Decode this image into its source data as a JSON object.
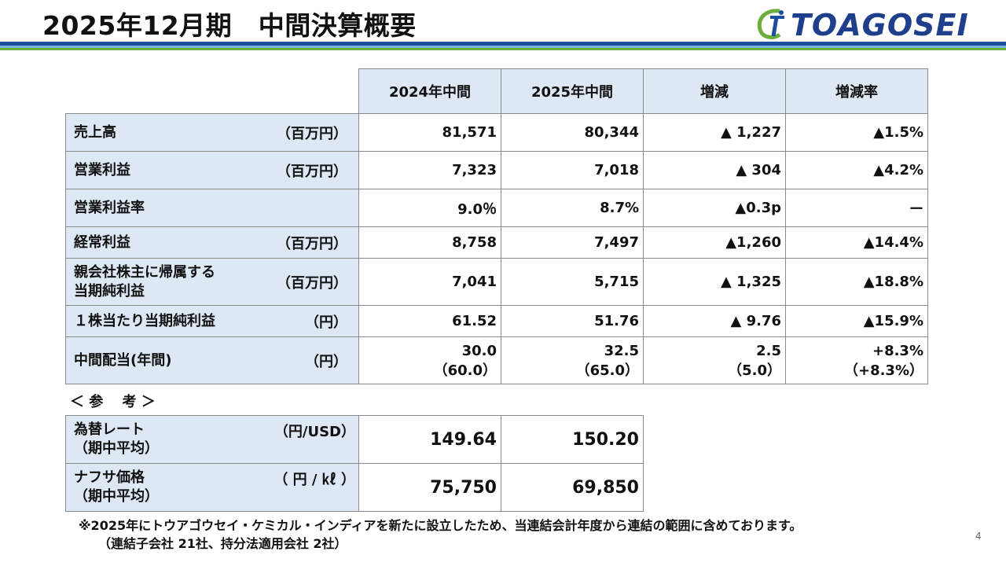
{
  "header": {
    "title": "2025年12月期　中間決算概要",
    "logo_text": "TOAGOSEI"
  },
  "colors": {
    "brand_blue": "#1d4f9f",
    "light_blue": "#78b4dc",
    "green": "#6cae3c",
    "header_fill": "#dde8f4"
  },
  "table": {
    "columns": [
      "2024年中間",
      "2025年中間",
      "増減",
      "増減率"
    ],
    "rows": [
      {
        "label": "売上高",
        "unit": "（百万円）",
        "values": [
          "81,571",
          "80,344",
          "▲ 1,227",
          "▲1.5%"
        ]
      },
      {
        "label": "営業利益",
        "unit": "（百万円）",
        "values": [
          "7,323",
          "7,018",
          "▲ 304",
          "▲4.2%"
        ]
      },
      {
        "label": "営業利益率",
        "unit": "",
        "values": [
          "9.0％",
          "8.7%",
          "▲0.3p",
          "ー"
        ]
      },
      {
        "label": "経常利益",
        "unit": "（百万円）",
        "values": [
          "8,758",
          "7,497",
          "▲1,260",
          "▲14.4%"
        ]
      },
      {
        "label_line1": "親会社株主に帰属する",
        "label_line2": "当期純利益",
        "unit": "（百万円）",
        "values": [
          "7,041",
          "5,715",
          "▲ 1,325",
          "▲18.8%"
        ]
      },
      {
        "label": "１株当たり当期純利益",
        "unit": "（円）",
        "values": [
          "61.52",
          "51.76",
          "▲ 9.76",
          "▲15.9%"
        ]
      },
      {
        "label": "中間配当(年間)",
        "unit": "（円）",
        "values_line1": [
          "30.0",
          "32.5",
          "2.5",
          "+8.3%"
        ],
        "values_line2": [
          "（60.0）",
          "（65.0）",
          "（5.0）",
          "（+8.3%）"
        ]
      }
    ]
  },
  "reference": {
    "label": "＜ 参　 考 ＞",
    "rows": [
      {
        "label_line1": "為替レート",
        "label_line2": "（期中平均）",
        "unit": "（円/USD）",
        "values": [
          "149.64",
          "150.20"
        ]
      },
      {
        "label_line1": "ナフサ価格",
        "label_line2": "（期中平均）",
        "unit": "（ 円 / ㎘ ）",
        "values": [
          "75,750",
          "69,850"
        ]
      }
    ]
  },
  "notes": {
    "line1": "※2025年にトウアゴウセイ・ケミカル・インディアを新たに設立したため、当連結会計年度から連結の範囲に含めております。",
    "line2": "（連結子会社 21社、持分法適用会社 2社）"
  },
  "page_number": "4"
}
